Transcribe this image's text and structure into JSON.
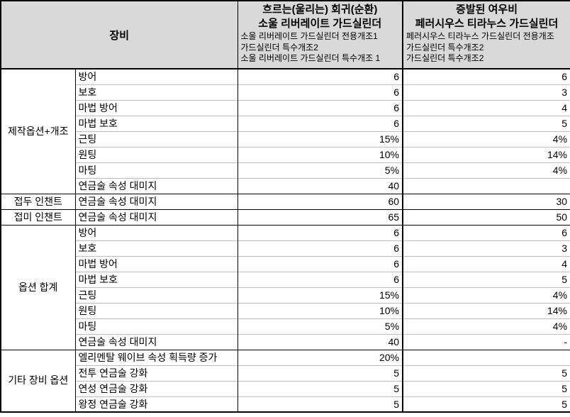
{
  "colors": {
    "header_bg": "#d9d9d9",
    "grid_strong": "#000000",
    "grid_light": "#bfbfbf"
  },
  "header": {
    "equip_label": "장비",
    "gear1": {
      "title1": "흐르는(울리는) 회귀(순환)",
      "title2": "소울 리버레이트 가드실린더",
      "subs": [
        "소울 리버레이트 가드실린더 전용개조1",
        "가드실린더 특수개조2",
        "소울 리버레이트 가드실린더 특수개조 1"
      ]
    },
    "gear2": {
      "title1": "증발된 여우비",
      "title2": "페러시우스 티라누스 가드실린더",
      "subs": [
        "페러시우스 티라누스 가드실린더 전용개조",
        "가드실린더 특수개조2",
        "가드실린더 특수개조2"
      ]
    }
  },
  "sections": [
    {
      "category": "제작옵션+개조",
      "rows": [
        {
          "label": "방어",
          "v1": "6",
          "v2": "6"
        },
        {
          "label": "보호",
          "v1": "6",
          "v2": "3"
        },
        {
          "label": "마법 방어",
          "v1": "6",
          "v2": "4"
        },
        {
          "label": "마법 보호",
          "v1": "6",
          "v2": "5"
        },
        {
          "label": "근팅",
          "v1": "15%",
          "v2": "4%"
        },
        {
          "label": "원팅",
          "v1": "10%",
          "v2": "14%"
        },
        {
          "label": "마팅",
          "v1": "5%",
          "v2": "4%"
        },
        {
          "label": "연금술 속성 대미지",
          "v1": "40",
          "v2": ""
        }
      ]
    },
    {
      "category": "접두 인챈트",
      "rows": [
        {
          "label": "연금술 속성 대미지",
          "v1": "60",
          "v2": "30"
        }
      ]
    },
    {
      "category": "접미 인챈트",
      "rows": [
        {
          "label": "연금술 속성 대미지",
          "v1": "65",
          "v2": "50"
        }
      ]
    },
    {
      "category": "옵션 합계",
      "rows": [
        {
          "label": "방어",
          "v1": "6",
          "v2": "6"
        },
        {
          "label": "보호",
          "v1": "6",
          "v2": "3"
        },
        {
          "label": "마법 방어",
          "v1": "6",
          "v2": "4"
        },
        {
          "label": "마법 보호",
          "v1": "6",
          "v2": "5"
        },
        {
          "label": "근팅",
          "v1": "15%",
          "v2": "4%"
        },
        {
          "label": "원팅",
          "v1": "10%",
          "v2": "14%"
        },
        {
          "label": "마팅",
          "v1": "5%",
          "v2": "4%"
        },
        {
          "label": "연금술 속성 대미지",
          "v1": "40",
          "v2": "-"
        }
      ]
    },
    {
      "category": "기타 장비 옵션",
      "rows": [
        {
          "label": "엘리멘탈 웨이브 속성 획득량 증가",
          "v1": "20%",
          "v2": ""
        },
        {
          "label": "전투 연금술 강화",
          "v1": "5",
          "v2": "5"
        },
        {
          "label": "연성 연금술 강화",
          "v1": "5",
          "v2": "5"
        },
        {
          "label": "왕정 연금술 강화",
          "v1": "5",
          "v2": "5"
        }
      ]
    }
  ],
  "chart_data": {
    "type": "table",
    "columns": [
      "장비",
      "",
      "흐르는(울리는) 회귀(순환) 소울 리버레이트 가드실린더",
      "증발된 여우비 페러시우스 티라누스 가드실린더"
    ],
    "rows": [
      [
        "제작옵션+개조",
        "방어",
        "6",
        "6"
      ],
      [
        "제작옵션+개조",
        "보호",
        "6",
        "3"
      ],
      [
        "제작옵션+개조",
        "마법 방어",
        "6",
        "4"
      ],
      [
        "제작옵션+개조",
        "마법 보호",
        "6",
        "5"
      ],
      [
        "제작옵션+개조",
        "근팅",
        "15%",
        "4%"
      ],
      [
        "제작옵션+개조",
        "원팅",
        "10%",
        "14%"
      ],
      [
        "제작옵션+개조",
        "마팅",
        "5%",
        "4%"
      ],
      [
        "제작옵션+개조",
        "연금술 속성 대미지",
        "40",
        ""
      ],
      [
        "접두 인챈트",
        "연금술 속성 대미지",
        "60",
        "30"
      ],
      [
        "접미 인챈트",
        "연금술 속성 대미지",
        "65",
        "50"
      ],
      [
        "옵션 합계",
        "방어",
        "6",
        "6"
      ],
      [
        "옵션 합계",
        "보호",
        "6",
        "3"
      ],
      [
        "옵션 합계",
        "마법 방어",
        "6",
        "4"
      ],
      [
        "옵션 합계",
        "마법 보호",
        "6",
        "5"
      ],
      [
        "옵션 합계",
        "근팅",
        "15%",
        "4%"
      ],
      [
        "옵션 합계",
        "원팅",
        "10%",
        "14%"
      ],
      [
        "옵션 합계",
        "마팅",
        "5%",
        "4%"
      ],
      [
        "옵션 합계",
        "연금술 속성 대미지",
        "40",
        "-"
      ],
      [
        "기타 장비 옵션",
        "엘리멘탈 웨이브 속성 획득량 증가",
        "20%",
        ""
      ],
      [
        "기타 장비 옵션",
        "전투 연금술 강화",
        "5",
        "5"
      ],
      [
        "기타 장비 옵션",
        "연성 연금술 강화",
        "5",
        "5"
      ],
      [
        "기타 장비 옵션",
        "왕정 연금술 강화",
        "5",
        "5"
      ]
    ]
  }
}
